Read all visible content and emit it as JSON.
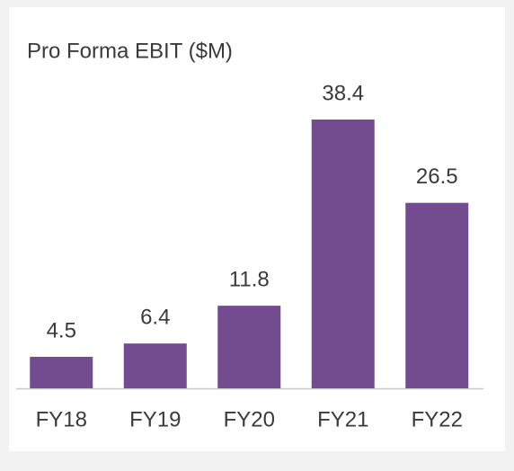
{
  "chart_data": {
    "type": "bar",
    "title": "Pro Forma EBIT ($M)",
    "categories": [
      "FY18",
      "FY19",
      "FY20",
      "FY21",
      "FY22"
    ],
    "values": [
      4.5,
      6.4,
      11.8,
      38.4,
      26.5
    ],
    "color": "#734b8f"
  }
}
